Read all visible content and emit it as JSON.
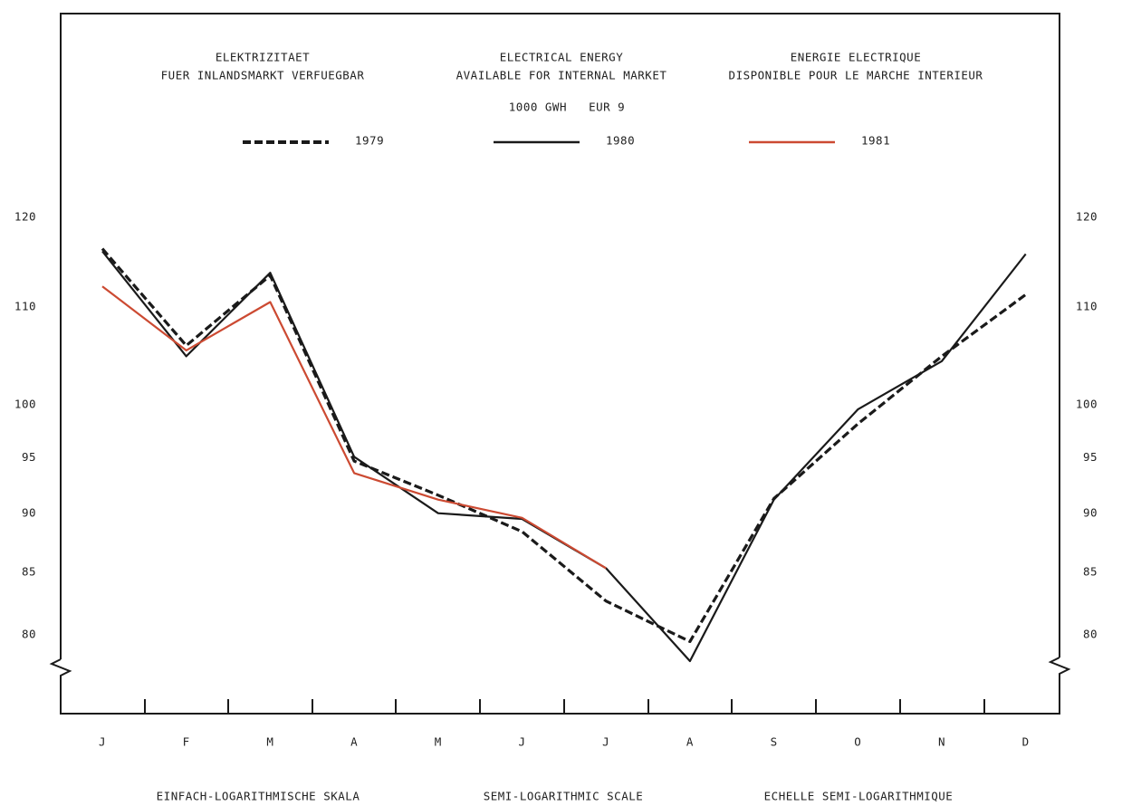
{
  "chart_data": {
    "type": "line",
    "titles": [
      [
        "ELEKTRIZITAET",
        "FUER INLANDSMARKT VERFUEGBAR"
      ],
      [
        "ELECTRICAL ENERGY",
        "AVAILABLE FOR INTERNAL MARKET"
      ],
      [
        "ENERGIE ELECTRIQUE",
        "DISPONIBLE POUR LE MARCHE INTERIEUR"
      ]
    ],
    "subtitle": "1000 GWH   EUR 9",
    "footer": [
      "EINFACH-LOGARITHMISCHE SKALA",
      "SEMI-LOGARITHMIC SCALE",
      "ECHELLE SEMI-LOGARITHMIQUE"
    ],
    "categories": [
      "J",
      "F",
      "M",
      "A",
      "M",
      "J",
      "J",
      "A",
      "S",
      "O",
      "N",
      "D"
    ],
    "log_scale": true,
    "ylim": [
      74.5,
      147
    ],
    "yticks": [
      80,
      85,
      90,
      95,
      100,
      110,
      120
    ],
    "series": [
      {
        "name": "1979",
        "color": "#1a1a1a",
        "line_style": "dashed",
        "values": [
          117,
          106.5,
          114,
          95.2,
          92.1,
          88.9,
          83.1,
          79.9,
          91.8,
          98.7,
          105.4,
          111.9
        ]
      },
      {
        "name": "1980",
        "color": "#1a1a1a",
        "line_style": "solid",
        "values": [
          116.7,
          105.4,
          114.3,
          95.6,
          90.5,
          90.0,
          85.8,
          78.4,
          91.7,
          100.1,
          104.9,
          116.4
        ]
      },
      {
        "name": "1981",
        "color": "#cc4a32",
        "line_style": "solid",
        "values": [
          112.8,
          106.0,
          111.1,
          94.1,
          91.7,
          90.1,
          85.8,
          null,
          null,
          null,
          null,
          null
        ]
      }
    ]
  }
}
